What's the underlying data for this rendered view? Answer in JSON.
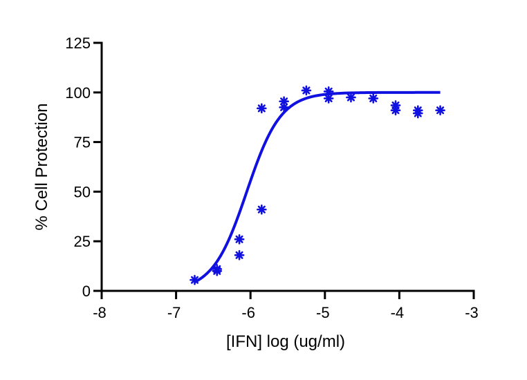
{
  "chart_data": {
    "type": "scatter",
    "title": "",
    "xlabel": "[IFN] log (ug/ml)",
    "ylabel": "% Cell Protection",
    "xlim": [
      -8,
      -3
    ],
    "ylim": [
      0,
      125
    ],
    "xticks": [
      -8,
      -7,
      -6,
      -5,
      -4,
      -3
    ],
    "yticks": [
      0,
      25,
      50,
      75,
      100,
      125
    ],
    "grid": false,
    "legend": "none",
    "colors": {
      "series": "#1010e0",
      "axis": "#000000"
    },
    "series": [
      {
        "type": "scatter",
        "marker": "asterisk",
        "points": [
          {
            "x": -6.75,
            "y": 5.5
          },
          {
            "x": -6.45,
            "y": 10
          },
          {
            "x": -6.45,
            "y": 11
          },
          {
            "x": -6.15,
            "y": 26
          },
          {
            "x": -6.15,
            "y": 18
          },
          {
            "x": -5.85,
            "y": 92
          },
          {
            "x": -5.85,
            "y": 41
          },
          {
            "x": -5.55,
            "y": 95.5
          },
          {
            "x": -5.55,
            "y": 92.5
          },
          {
            "x": -5.25,
            "y": 101
          },
          {
            "x": -4.95,
            "y": 100.5
          },
          {
            "x": -4.95,
            "y": 97
          },
          {
            "x": -4.65,
            "y": 97.5
          },
          {
            "x": -4.35,
            "y": 97
          },
          {
            "x": -4.05,
            "y": 93.5
          },
          {
            "x": -4.05,
            "y": 91
          },
          {
            "x": -3.75,
            "y": 91
          },
          {
            "x": -3.75,
            "y": 89.5
          },
          {
            "x": -3.45,
            "y": 91
          }
        ]
      },
      {
        "type": "line",
        "fit": "sigmoidal dose-response",
        "bottom": 0,
        "top": 100,
        "logEC50": -6.05,
        "hill_slope": 1.9,
        "x_range": [
          -6.75,
          -3.45
        ]
      }
    ]
  }
}
